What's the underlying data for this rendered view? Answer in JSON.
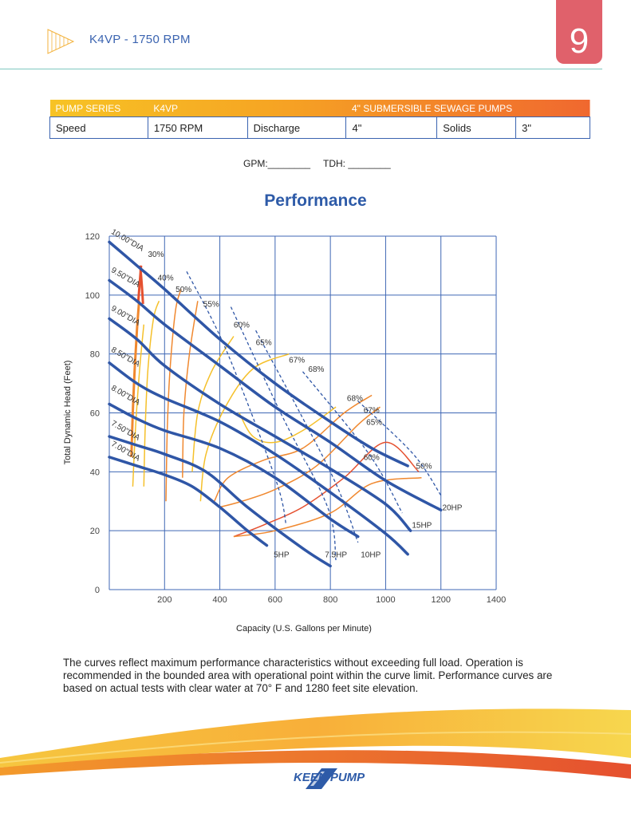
{
  "header": {
    "title": "K4VP - 1750 RPM",
    "page_number": "9"
  },
  "spec_table": {
    "row1": {
      "series_label": "PUMP SERIES",
      "series_value": "K4VP",
      "description": "4\" SUBMERSIBLE SEWAGE PUMPS"
    },
    "row2": {
      "speed_label": "Speed",
      "speed_value": "1750 RPM",
      "discharge_label": "Discharge",
      "discharge_value": "4\"",
      "solids_label": "Solids",
      "solids_value": "3\""
    }
  },
  "fields": {
    "gpm": "GPM:________",
    "tdh": "TDH: ________"
  },
  "section_title": "Performance",
  "chart_data": {
    "type": "line",
    "xlabel": "Capacity (U.S. Gallons per Minute)",
    "ylabel": "Total Dynamic Head (Feet)",
    "xlim": [
      0,
      1400
    ],
    "ylim": [
      0,
      120
    ],
    "x_ticks": [
      "200",
      "400",
      "600",
      "800",
      "1000",
      "1200",
      "1400"
    ],
    "y_ticks": [
      "0",
      "20",
      "40",
      "60",
      "80",
      "100",
      "120"
    ],
    "impeller_curves": [
      {
        "name": "10.00\"DIA",
        "points": [
          [
            0,
            118
          ],
          [
            100,
            110
          ],
          [
            200,
            102
          ],
          [
            400,
            85
          ],
          [
            600,
            70
          ],
          [
            800,
            57
          ],
          [
            950,
            48
          ],
          [
            1080,
            42
          ]
        ]
      },
      {
        "name": "9.50\"DIA",
        "points": [
          [
            0,
            105
          ],
          [
            100,
            98
          ],
          [
            200,
            90
          ],
          [
            400,
            76
          ],
          [
            600,
            62
          ],
          [
            800,
            50
          ],
          [
            1000,
            37
          ],
          [
            1200,
            27
          ]
        ]
      },
      {
        "name": "9.00\"DIA",
        "points": [
          [
            0,
            92
          ],
          [
            100,
            85
          ],
          [
            200,
            76
          ],
          [
            400,
            63
          ],
          [
            600,
            52
          ],
          [
            800,
            41
          ],
          [
            1000,
            29
          ],
          [
            1090,
            20
          ]
        ]
      },
      {
        "name": "8.50\"DIA",
        "points": [
          [
            0,
            77
          ],
          [
            100,
            70
          ],
          [
            200,
            65
          ],
          [
            400,
            57
          ],
          [
            600,
            46
          ],
          [
            800,
            33
          ],
          [
            1000,
            19
          ],
          [
            1080,
            12
          ]
        ]
      },
      {
        "name": "8.00\"DIA",
        "points": [
          [
            0,
            63
          ],
          [
            100,
            58
          ],
          [
            200,
            54
          ],
          [
            400,
            48
          ],
          [
            600,
            38
          ],
          [
            800,
            24
          ],
          [
            900,
            18
          ]
        ]
      },
      {
        "name": "7.50\"DIA",
        "points": [
          [
            0,
            52
          ],
          [
            100,
            49
          ],
          [
            200,
            46
          ],
          [
            350,
            40
          ],
          [
            500,
            28
          ],
          [
            700,
            14
          ],
          [
            800,
            8
          ]
        ]
      },
      {
        "name": "7.00\"DIA",
        "points": [
          [
            0,
            45
          ],
          [
            100,
            42
          ],
          [
            200,
            39
          ],
          [
            300,
            35
          ],
          [
            400,
            28
          ],
          [
            500,
            20
          ],
          [
            570,
            15
          ]
        ]
      }
    ],
    "efficiency_labels": [
      "30%",
      "40%",
      "50%",
      "55%",
      "60%",
      "65%",
      "67%",
      "68%",
      "68%",
      "67%",
      "65%",
      "60%",
      "50%"
    ],
    "power_labels": [
      "5HP",
      "7.5HP",
      "10HP",
      "15HP",
      "20HP"
    ],
    "colors": {
      "curve": "#2f56a6",
      "grid": "#3f67b4",
      "eff_yellow": "#f5c02a",
      "eff_orange": "#f0882f",
      "eff_red": "#e5502f"
    }
  },
  "footnote": "The curves reflect maximum performance characteristics without exceeding full load. Operation is recommended in the bounded area with operational point within the curve limit. Performance curves are based on actual tests with clear water at 70° F and 1280 feet site elevation.",
  "brand": {
    "name": "KEEN PUMP"
  }
}
